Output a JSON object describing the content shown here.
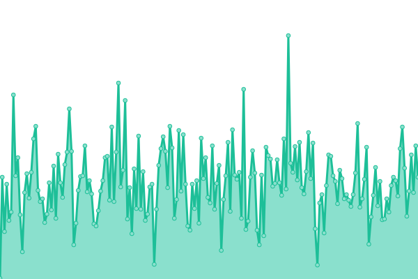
{
  "chart_data": {
    "type": "area",
    "title": "",
    "xlabel": "",
    "ylabel": "",
    "ylim": [
      0,
      400
    ],
    "grid": false,
    "legend": "none",
    "colors": {
      "line": "#1dbf98",
      "fill": "#8ae0cd",
      "marker_fill": "#8ae0cd",
      "marker_stroke": "#1dbf98"
    },
    "values": [
      1,
      146,
      68,
      136,
      84,
      96,
      264,
      148,
      174,
      92,
      39,
      124,
      151,
      116,
      153,
      201,
      219,
      127,
      111,
      115,
      81,
      93,
      138,
      99,
      162,
      87,
      179,
      138,
      117,
      164,
      182,
      244,
      183,
      49,
      80,
      127,
      147,
      148,
      191,
      125,
      141,
      122,
      79,
      76,
      98,
      126,
      141,
      174,
      176,
      113,
      218,
      111,
      182,
      281,
      132,
      156,
      256,
      86,
      131,
      65,
      158,
      101,
      205,
      100,
      154,
      84,
      93,
      132,
      136,
      21,
      100,
      163,
      187,
      204,
      183,
      131,
      219,
      188,
      87,
      114,
      213,
      126,
      207,
      136,
      76,
      70,
      136,
      101,
      141,
      80,
      202,
      144,
      174,
      117,
      109,
      191,
      100,
      137,
      163,
      41,
      114,
      148,
      196,
      97,
      214,
      149,
      143,
      153,
      87,
      272,
      71,
      83,
      146,
      184,
      152,
      70,
      49,
      149,
      62,
      189,
      177,
      172,
      133,
      137,
      171,
      138,
      120,
      201,
      129,
      349,
      166,
      153,
      190,
      142,
      196,
      131,
      122,
      154,
      210,
      144,
      195,
      72,
      20,
      109,
      121,
      66,
      134,
      178,
      176,
      148,
      140,
      108,
      156,
      144,
      115,
      121,
      113,
      104,
      121,
      152,
      223,
      103,
      115,
      143,
      189,
      50,
      89,
      120,
      160,
      105,
      140,
      85,
      86,
      115,
      96,
      134,
      146,
      141,
      119,
      187,
      218,
      159,
      90,
      126,
      178,
      124,
      191,
      146
    ]
  }
}
